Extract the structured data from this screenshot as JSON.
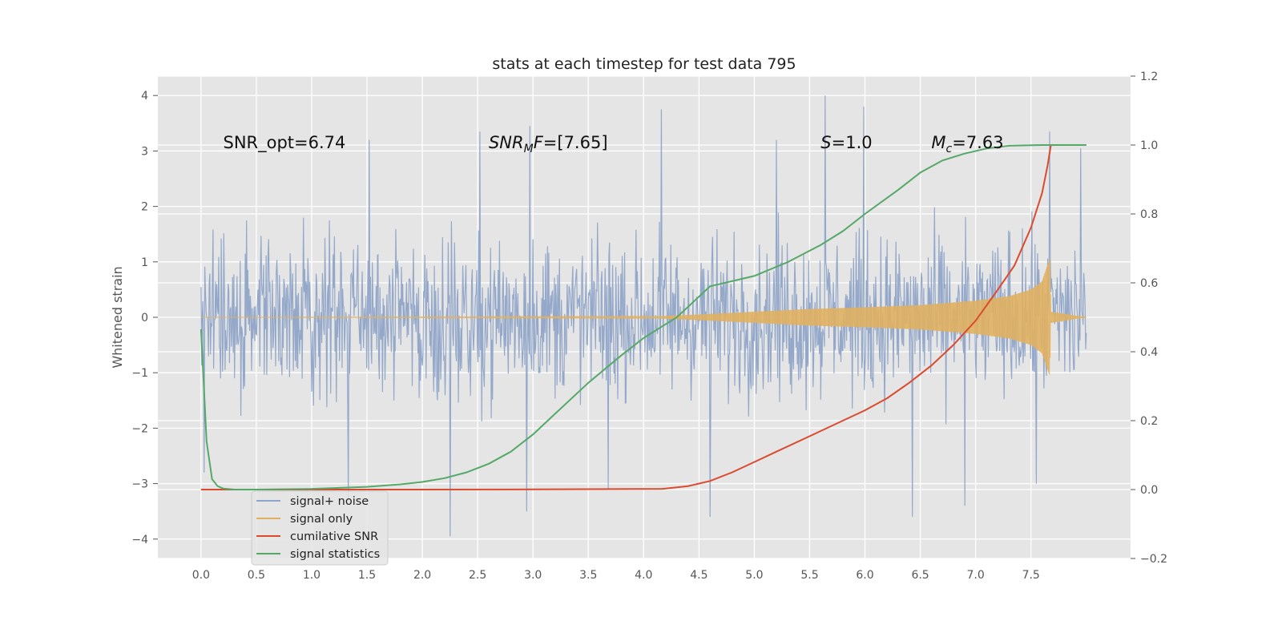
{
  "chart_data": {
    "type": "line",
    "title": "stats at each timestep for test data 795",
    "ylabel": "Whitened strain",
    "xlim": [
      -0.39,
      8.4
    ],
    "ylim": [
      -4.35,
      4.35
    ],
    "y2lim": [
      -0.2,
      1.2
    ],
    "grid": true,
    "xticks": [
      0.0,
      0.5,
      1.0,
      1.5,
      2.0,
      2.5,
      3.0,
      3.5,
      4.0,
      4.5,
      5.0,
      5.5,
      6.0,
      6.5,
      7.0,
      7.5
    ],
    "xtick_labels": [
      "0.0",
      "0.5",
      "1.0",
      "1.5",
      "2.0",
      "2.5",
      "3.0",
      "3.5",
      "4.0",
      "4.5",
      "5.0",
      "5.5",
      "6.0",
      "6.5",
      "7.0",
      "7.5"
    ],
    "yticks": [
      -4,
      -3,
      -2,
      -1,
      0,
      1,
      2,
      3,
      4
    ],
    "ytick_labels": [
      "−4",
      "−3",
      "−2",
      "−1",
      "0",
      "1",
      "2",
      "3",
      "4"
    ],
    "y2ticks": [
      -0.2,
      0.0,
      0.2,
      0.4,
      0.6,
      0.8,
      1.0,
      1.2
    ],
    "y2tick_labels": [
      "−0.2",
      "0.0",
      "0.2",
      "0.4",
      "0.6",
      "0.8",
      "1.0",
      "1.2"
    ],
    "annotations": [
      {
        "text": "SNR_opt=6.74",
        "x": 0.2,
        "y": 3.15,
        "parts": [
          {
            "t": "SNR_opt=6.74",
            "style": "normal"
          }
        ]
      },
      {
        "text": "SNR_MF=[7.65]",
        "x": 2.6,
        "y": 3.15,
        "parts": [
          {
            "t": "SNR",
            "style": "italic"
          },
          {
            "t": "M",
            "style": "italic-sub"
          },
          {
            "t": "F",
            "style": "italic"
          },
          {
            "t": "=[7.65]",
            "style": "normal"
          }
        ]
      },
      {
        "text": "S=1.0",
        "x": 5.6,
        "y": 3.15,
        "parts": [
          {
            "t": "S",
            "style": "italic"
          },
          {
            "t": "=1.0",
            "style": "normal"
          }
        ]
      },
      {
        "text": "M_c=7.63",
        "x": 6.6,
        "y": 3.15,
        "parts": [
          {
            "t": "M",
            "style": "italic"
          },
          {
            "t": "c",
            "style": "italic-sub"
          },
          {
            "t": "=7.63",
            "style": "normal"
          }
        ]
      }
    ],
    "series": [
      {
        "name": "signal+ noise",
        "axis": "left",
        "color": "#8fa4c8",
        "kind": "noise",
        "x_start": 0.0,
        "x_end": 8.0,
        "samples": 1400,
        "typical_max": 2.3,
        "typical_min": -2.1,
        "notable_peaks": [
          {
            "x": 2.52,
            "y": 3.35
          },
          {
            "x": 2.97,
            "y": 3.45
          },
          {
            "x": 4.16,
            "y": 3.75
          },
          {
            "x": 5.64,
            "y": 4.0
          },
          {
            "x": 5.99,
            "y": 3.8
          },
          {
            "x": 7.67,
            "y": 3.35
          },
          {
            "x": 1.52,
            "y": 3.2
          },
          {
            "x": 5.2,
            "y": 3.2
          },
          {
            "x": 7.95,
            "y": 3.05
          },
          {
            "x": 2.25,
            "y": -3.95
          },
          {
            "x": 2.94,
            "y": -3.5
          },
          {
            "x": 4.6,
            "y": -3.6
          },
          {
            "x": 6.43,
            "y": -3.6
          },
          {
            "x": 6.9,
            "y": -3.4
          },
          {
            "x": 1.33,
            "y": -3.3
          },
          {
            "x": 3.68,
            "y": -3.1
          },
          {
            "x": 7.55,
            "y": -3.0
          },
          {
            "x": 0.03,
            "y": -2.8
          }
        ]
      },
      {
        "name": "signal only",
        "axis": "left",
        "color": "#e0b060",
        "kind": "chirp",
        "envelope": [
          [
            0.0,
            0.0
          ],
          [
            4.0,
            0.01
          ],
          [
            4.5,
            0.05
          ],
          [
            5.0,
            0.1
          ],
          [
            5.5,
            0.15
          ],
          [
            6.0,
            0.18
          ],
          [
            6.5,
            0.22
          ],
          [
            7.0,
            0.3
          ],
          [
            7.3,
            0.38
          ],
          [
            7.5,
            0.5
          ],
          [
            7.6,
            0.65
          ],
          [
            7.65,
            0.95
          ],
          [
            7.67,
            1.05
          ],
          [
            7.68,
            0.1
          ],
          [
            8.0,
            0.0
          ]
        ]
      },
      {
        "name": "cumilative SNR",
        "axis": "right",
        "color": "#dc4a2e",
        "kind": "line",
        "x": [
          0.0,
          1.0,
          2.0,
          3.0,
          4.17,
          4.4,
          4.6,
          4.8,
          5.0,
          5.2,
          5.5,
          5.8,
          6.0,
          6.2,
          6.4,
          6.6,
          6.8,
          7.0,
          7.2,
          7.35,
          7.5,
          7.6,
          7.65,
          7.68,
          7.7,
          8.0
        ],
        "y": [
          0.0,
          0.0,
          0.0,
          0.0005,
          0.002,
          0.01,
          0.025,
          0.05,
          0.08,
          0.11,
          0.155,
          0.2,
          0.23,
          0.265,
          0.31,
          0.36,
          0.42,
          0.49,
          0.58,
          0.65,
          0.76,
          0.86,
          0.94,
          1.0,
          1.0,
          1.0
        ]
      },
      {
        "name": "signal statistics",
        "axis": "right",
        "color": "#55a868",
        "kind": "line",
        "x": [
          0.0,
          0.05,
          0.1,
          0.15,
          0.2,
          0.3,
          0.5,
          1.0,
          1.5,
          1.8,
          2.0,
          2.2,
          2.4,
          2.6,
          2.8,
          3.0,
          3.2,
          3.5,
          3.8,
          4.0,
          4.3,
          4.6,
          5.0,
          5.3,
          5.6,
          5.8,
          6.0,
          6.3,
          6.5,
          6.7,
          6.9,
          7.1,
          7.3,
          7.6,
          7.8,
          8.0
        ],
        "y": [
          0.465,
          0.14,
          0.03,
          0.01,
          0.003,
          0.0,
          0.0,
          0.002,
          0.008,
          0.015,
          0.022,
          0.033,
          0.05,
          0.075,
          0.11,
          0.16,
          0.22,
          0.31,
          0.39,
          0.44,
          0.5,
          0.59,
          0.62,
          0.66,
          0.71,
          0.75,
          0.8,
          0.87,
          0.92,
          0.955,
          0.975,
          0.99,
          0.998,
          1.0,
          1.0,
          1.0
        ]
      }
    ],
    "legend": {
      "placement": "lower-left",
      "entries": [
        {
          "label": "signal+ noise",
          "color": "#8fa4c8"
        },
        {
          "label": "signal only",
          "color": "#e0b060"
        },
        {
          "label": "cumilative SNR",
          "color": "#dc4a2e"
        },
        {
          "label": "signal statistics",
          "color": "#55a868"
        }
      ]
    }
  }
}
